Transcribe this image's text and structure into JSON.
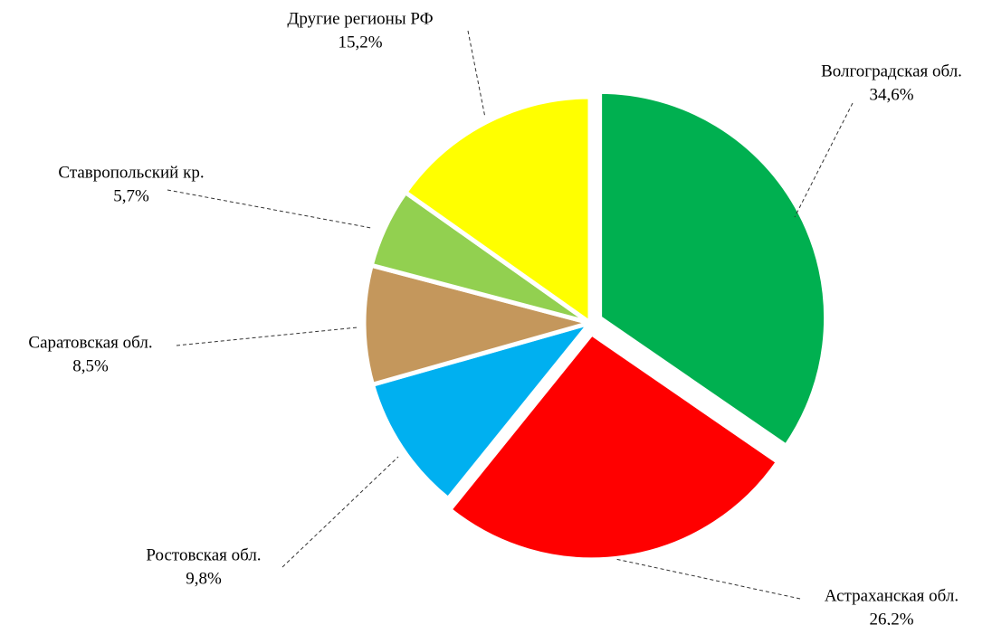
{
  "chart_data": {
    "type": "pie",
    "categories": [
      "Волгоградская обл.",
      "Астраханская обл.",
      "Ростовская обл.",
      "Саратовская обл.",
      "Ставропольский кр.",
      "Другие регионы РФ"
    ],
    "values": [
      34.6,
      26.2,
      9.8,
      8.5,
      5.7,
      15.2
    ],
    "value_labels": [
      "34,6%",
      "26,2%",
      "9,8%",
      "8,5%",
      "5,7%",
      "15,2%"
    ],
    "colors": [
      "#00b050",
      "#ff0000",
      "#00b0f0",
      "#c4975c",
      "#92d050",
      "#ffff00"
    ]
  }
}
